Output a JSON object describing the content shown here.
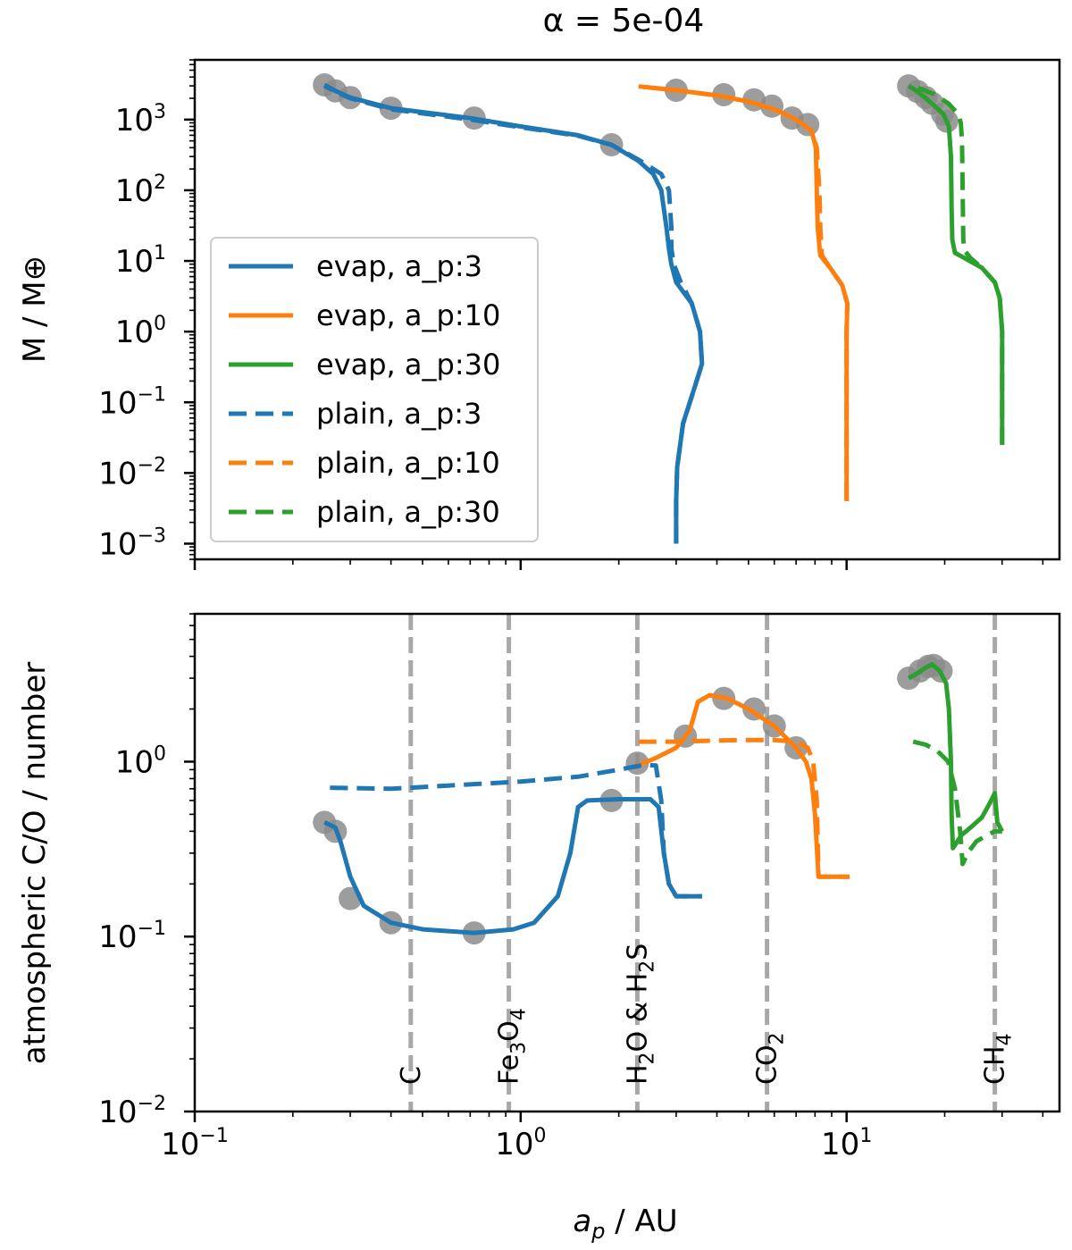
{
  "chart_data": [
    {
      "type": "line",
      "panel": "top",
      "title": "α = 5e-04",
      "ylabel": "M / M⊕",
      "xscale": "log",
      "yscale": "log",
      "xlim": [
        0.1,
        45
      ],
      "ylim": [
        0.0006,
        7000
      ],
      "yticks": [
        {
          "base": "10",
          "exp": "−3",
          "value": 0.001
        },
        {
          "base": "10",
          "exp": "−2",
          "value": 0.01
        },
        {
          "base": "10",
          "exp": "−1",
          "value": 0.1
        },
        {
          "base": "10",
          "exp": "0",
          "value": 1
        },
        {
          "base": "10",
          "exp": "1",
          "value": 10
        },
        {
          "base": "10",
          "exp": "2",
          "value": 100
        },
        {
          "base": "10",
          "exp": "3",
          "value": 1000
        }
      ],
      "legend_position": "lower left",
      "series": [
        {
          "name": "evap, a_p:3",
          "color": "#1f77b4",
          "style": "solid",
          "points": [
            [
              3.0,
              0.001
            ],
            [
              3.0,
              0.004
            ],
            [
              3.02,
              0.012
            ],
            [
              3.15,
              0.05
            ],
            [
              3.4,
              0.15
            ],
            [
              3.6,
              0.35
            ],
            [
              3.55,
              1.0
            ],
            [
              3.35,
              2.5
            ],
            [
              3.0,
              5
            ],
            [
              2.9,
              9
            ],
            [
              2.85,
              15
            ],
            [
              2.8,
              30
            ],
            [
              2.7,
              100
            ],
            [
              2.55,
              170
            ],
            [
              2.3,
              260
            ],
            [
              1.9,
              440
            ],
            [
              1.5,
              600
            ],
            [
              1.0,
              800
            ],
            [
              0.7,
              1050
            ],
            [
              0.4,
              1450
            ],
            [
              0.3,
              2050
            ],
            [
              0.27,
              2550
            ],
            [
              0.25,
              3100
            ]
          ]
        },
        {
          "name": "evap, a_p:10",
          "color": "#ff7f0e",
          "style": "solid",
          "points": [
            [
              10.0,
              0.004
            ],
            [
              10.0,
              0.1
            ],
            [
              10.0,
              1.0
            ],
            [
              10.05,
              2.5
            ],
            [
              9.7,
              4.5
            ],
            [
              8.9,
              8
            ],
            [
              8.3,
              12
            ],
            [
              8.15,
              30
            ],
            [
              8.1,
              100
            ],
            [
              8.05,
              400
            ],
            [
              7.8,
              700
            ],
            [
              7.0,
              1000
            ],
            [
              6.0,
              1400
            ],
            [
              5.0,
              1800
            ],
            [
              4.0,
              2200
            ],
            [
              3.0,
              2600
            ],
            [
              2.3,
              2950
            ]
          ]
        },
        {
          "name": "evap, a_p:30",
          "color": "#2ca02c",
          "style": "solid",
          "points": [
            [
              30.0,
              0.025
            ],
            [
              30.0,
              0.1
            ],
            [
              30.0,
              1.0
            ],
            [
              29.5,
              3
            ],
            [
              28.5,
              5
            ],
            [
              26,
              8
            ],
            [
              23,
              11
            ],
            [
              21.5,
              13
            ],
            [
              21.1,
              20
            ],
            [
              21.0,
              60
            ],
            [
              20.9,
              300
            ],
            [
              20.6,
              800
            ],
            [
              19.8,
              1200
            ],
            [
              18.5,
              1600
            ],
            [
              17.5,
              2000
            ],
            [
              16.5,
              2500
            ],
            [
              15.5,
              3000
            ]
          ]
        },
        {
          "name": "plain, a_p:3",
          "color": "#1f77b4",
          "style": "dashed",
          "points": [
            [
              3.0,
              0.001
            ],
            [
              3.0,
              0.004
            ],
            [
              3.02,
              0.012
            ],
            [
              3.15,
              0.05
            ],
            [
              3.4,
              0.15
            ],
            [
              3.6,
              0.35
            ],
            [
              3.55,
              1.0
            ],
            [
              3.35,
              2.5
            ],
            [
              3.1,
              5
            ],
            [
              2.95,
              9
            ],
            [
              2.9,
              15
            ],
            [
              2.9,
              30
            ],
            [
              2.85,
              100
            ],
            [
              2.7,
              170
            ],
            [
              2.3,
              270
            ],
            [
              1.9,
              440
            ],
            [
              1.5,
              590
            ],
            [
              1.0,
              780
            ],
            [
              0.7,
              1000
            ],
            [
              0.4,
              1400
            ],
            [
              0.3,
              2000
            ],
            [
              0.27,
              2500
            ],
            [
              0.25,
              3000
            ]
          ]
        },
        {
          "name": "plain, a_p:10",
          "color": "#ff7f0e",
          "style": "dashed",
          "points": [
            [
              10.0,
              0.004
            ],
            [
              10.0,
              0.1
            ],
            [
              10.0,
              1.0
            ],
            [
              10.05,
              2.5
            ],
            [
              9.7,
              4.5
            ],
            [
              8.9,
              8
            ],
            [
              8.4,
              12
            ],
            [
              8.3,
              30
            ],
            [
              8.25,
              100
            ],
            [
              8.1,
              400
            ],
            [
              7.8,
              700
            ],
            [
              7.0,
              1000
            ],
            [
              6.0,
              1400
            ],
            [
              5.0,
              1800
            ],
            [
              4.0,
              2200
            ],
            [
              3.0,
              2600
            ],
            [
              2.3,
              2950
            ]
          ]
        },
        {
          "name": "plain, a_p:30",
          "color": "#2ca02c",
          "style": "dashed",
          "points": [
            [
              30.0,
              0.025
            ],
            [
              30.0,
              0.1
            ],
            [
              30.0,
              1.0
            ],
            [
              29.5,
              3
            ],
            [
              28.5,
              5
            ],
            [
              26,
              8
            ],
            [
              24,
              11
            ],
            [
              23,
              14
            ],
            [
              22.8,
              20
            ],
            [
              22.7,
              100
            ],
            [
              22.6,
              500
            ],
            [
              22.4,
              900
            ],
            [
              22.0,
              1200
            ],
            [
              20.5,
              1700
            ],
            [
              18.5,
              2300
            ],
            [
              16.0,
              3000
            ]
          ]
        }
      ],
      "markers": [
        [
          0.25,
          3100
        ],
        [
          0.27,
          2550
        ],
        [
          0.3,
          2050
        ],
        [
          0.4,
          1450
        ],
        [
          0.72,
          1050
        ],
        [
          1.9,
          440
        ],
        [
          3.0,
          2600
        ],
        [
          4.2,
          2250
        ],
        [
          5.2,
          1900
        ],
        [
          5.9,
          1550
        ],
        [
          6.8,
          1050
        ],
        [
          7.6,
          850
        ],
        [
          15.5,
          3000
        ],
        [
          16.5,
          2500
        ],
        [
          17.5,
          2050
        ],
        [
          18.3,
          1700
        ],
        [
          19.7,
          1200
        ],
        [
          20.3,
          950
        ]
      ]
    },
    {
      "type": "line",
      "panel": "bottom",
      "xlabel": "a_p / AU",
      "ylabel": "atmospheric C/O / number",
      "xscale": "log",
      "yscale": "log",
      "xlim": [
        0.1,
        45
      ],
      "ylim": [
        0.01,
        7
      ],
      "xticks": [
        {
          "base": "10",
          "exp": "−1",
          "value": 0.1
        },
        {
          "base": "10",
          "exp": "0",
          "value": 1
        },
        {
          "base": "10",
          "exp": "1",
          "value": 10
        }
      ],
      "yticks": [
        {
          "base": "10",
          "exp": "−2",
          "value": 0.01
        },
        {
          "base": "10",
          "exp": "−1",
          "value": 0.1
        },
        {
          "base": "10",
          "exp": "0",
          "value": 1
        }
      ],
      "snowlines": [
        {
          "x": 0.46,
          "label": "C"
        },
        {
          "x": 0.92,
          "label": "Fe3O4",
          "label_main": "Fe",
          "sub1": "3",
          "mid": "O",
          "sub2": "4"
        },
        {
          "x": 2.28,
          "label": "H2O & H2S",
          "label_main": "H",
          "sub1": "2",
          "mid": "O & H",
          "sub2": "2",
          "tail": "S"
        },
        {
          "x": 5.7,
          "label": "CO2",
          "label_main": "CO",
          "sub1": "2"
        },
        {
          "x": 28.5,
          "label": "CH4",
          "label_main": "CH",
          "sub1": "4"
        }
      ],
      "series": [
        {
          "name": "evap, a_p:3",
          "color": "#1f77b4",
          "style": "solid",
          "points": [
            [
              0.25,
              0.45
            ],
            [
              0.27,
              0.42
            ],
            [
              0.28,
              0.35
            ],
            [
              0.3,
              0.22
            ],
            [
              0.33,
              0.15
            ],
            [
              0.4,
              0.12
            ],
            [
              0.5,
              0.11
            ],
            [
              0.72,
              0.105
            ],
            [
              0.95,
              0.11
            ],
            [
              1.1,
              0.12
            ],
            [
              1.3,
              0.17
            ],
            [
              1.42,
              0.3
            ],
            [
              1.5,
              0.55
            ],
            [
              1.6,
              0.6
            ],
            [
              2.0,
              0.61
            ],
            [
              2.5,
              0.61
            ],
            [
              2.65,
              0.55
            ],
            [
              2.75,
              0.3
            ],
            [
              2.85,
              0.2
            ],
            [
              3.0,
              0.17
            ],
            [
              3.6,
              0.17
            ]
          ]
        },
        {
          "name": "evap, a_p:10",
          "color": "#ff7f0e",
          "style": "solid",
          "points": [
            [
              2.28,
              0.95
            ],
            [
              2.6,
              1.05
            ],
            [
              3.0,
              1.2
            ],
            [
              3.3,
              1.5
            ],
            [
              3.5,
              2.2
            ],
            [
              3.8,
              2.4
            ],
            [
              4.3,
              2.3
            ],
            [
              5.0,
              2.0
            ],
            [
              6.0,
              1.6
            ],
            [
              7.0,
              1.2
            ],
            [
              7.5,
              1.0
            ],
            [
              7.8,
              0.8
            ],
            [
              8.0,
              0.5
            ],
            [
              8.2,
              0.22
            ],
            [
              10.2,
              0.22
            ]
          ]
        },
        {
          "name": "evap, a_p:30",
          "color": "#2ca02c",
          "style": "solid",
          "points": [
            [
              15.5,
              3.0
            ],
            [
              16.5,
              3.2
            ],
            [
              17.5,
              3.45
            ],
            [
              18.3,
              3.6
            ],
            [
              19.3,
              3.3
            ],
            [
              20.2,
              2.8
            ],
            [
              20.6,
              2.0
            ],
            [
              20.9,
              1.0
            ],
            [
              21.0,
              0.5
            ],
            [
              21.2,
              0.32
            ],
            [
              22.5,
              0.38
            ],
            [
              24,
              0.42
            ],
            [
              26,
              0.48
            ],
            [
              27.5,
              0.58
            ],
            [
              28.5,
              0.66
            ],
            [
              29,
              0.45
            ],
            [
              30,
              0.4
            ]
          ]
        },
        {
          "name": "plain, a_p:3",
          "color": "#1f77b4",
          "style": "dashed",
          "points": [
            [
              0.26,
              0.71
            ],
            [
              0.4,
              0.7
            ],
            [
              0.6,
              0.73
            ],
            [
              1.0,
              0.77
            ],
            [
              1.5,
              0.82
            ],
            [
              2.0,
              0.9
            ],
            [
              2.4,
              0.96
            ],
            [
              2.6,
              0.95
            ],
            [
              2.7,
              0.6
            ],
            [
              2.75,
              0.3
            ],
            [
              2.85,
              0.2
            ],
            [
              3.0,
              0.17
            ],
            [
              3.6,
              0.17
            ]
          ]
        },
        {
          "name": "plain, a_p:10",
          "color": "#ff7f0e",
          "style": "dashed",
          "points": [
            [
              2.3,
              1.3
            ],
            [
              3.0,
              1.3
            ],
            [
              4.0,
              1.32
            ],
            [
              5.0,
              1.33
            ],
            [
              6.0,
              1.33
            ],
            [
              7.0,
              1.3
            ],
            [
              7.6,
              1.2
            ],
            [
              7.9,
              1.0
            ],
            [
              8.1,
              0.6
            ],
            [
              8.2,
              0.22
            ],
            [
              10.2,
              0.22
            ]
          ]
        },
        {
          "name": "plain, a_p:30",
          "color": "#2ca02c",
          "style": "dashed",
          "points": [
            [
              16.0,
              1.3
            ],
            [
              17.5,
              1.25
            ],
            [
              19.0,
              1.15
            ],
            [
              20.5,
              1.0
            ],
            [
              21.5,
              0.7
            ],
            [
              22.3,
              0.4
            ],
            [
              22.7,
              0.26
            ],
            [
              23.5,
              0.3
            ],
            [
              25,
              0.35
            ],
            [
              27,
              0.38
            ],
            [
              28.5,
              0.4
            ],
            [
              30,
              0.4
            ]
          ]
        }
      ],
      "markers": [
        [
          0.25,
          0.45
        ],
        [
          0.27,
          0.4
        ],
        [
          0.3,
          0.165
        ],
        [
          0.4,
          0.12
        ],
        [
          0.72,
          0.105
        ],
        [
          1.9,
          0.6
        ],
        [
          2.28,
          0.98
        ],
        [
          3.2,
          1.4
        ],
        [
          4.2,
          2.3
        ],
        [
          5.2,
          2.0
        ],
        [
          6.0,
          1.6
        ],
        [
          7.0,
          1.2
        ],
        [
          15.5,
          3.0
        ],
        [
          16.8,
          3.3
        ],
        [
          17.8,
          3.5
        ],
        [
          18.5,
          3.55
        ],
        [
          19.5,
          3.3
        ]
      ]
    }
  ]
}
